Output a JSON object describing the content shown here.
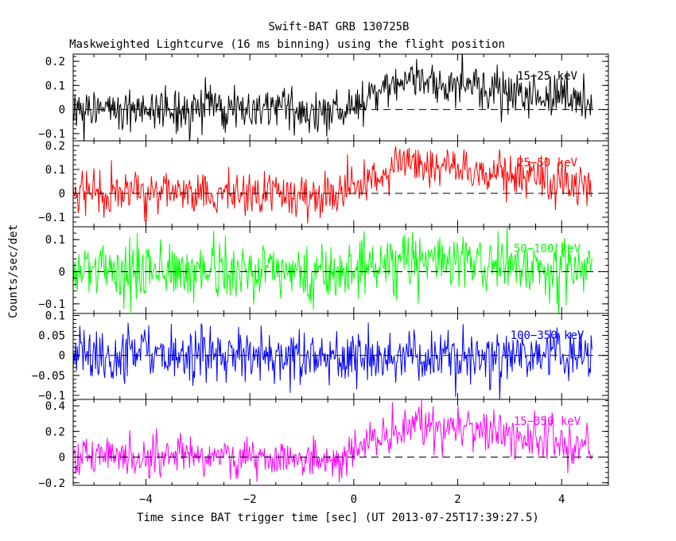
{
  "chart_data": {
    "type": "line",
    "title": "Swift-BAT GRB 130725B",
    "subtitle": "Maskweighted Lightcurve (16 ms binning) using the flight position",
    "xlabel": "Time since BAT trigger time [sec] (UT 2013-07-25T17:39:27.5)",
    "ylabel": "Counts/sec/det",
    "xlim": [
      -5.4,
      4.9
    ],
    "xticks": [
      -4,
      -2,
      0,
      2,
      4
    ],
    "xtick_labels": [
      "−4",
      "−2",
      "0",
      "2",
      "4"
    ],
    "bin_width_sec": 0.016,
    "time_range": [
      -5.4,
      4.6
    ],
    "panels": [
      {
        "name": "15−25 keV",
        "color": "#000000",
        "ylim": [
          -0.13,
          0.23
        ],
        "yticks": [
          -0.1,
          0,
          0.1,
          0.2
        ],
        "ytick_labels": [
          "−0.1",
          "0",
          "0.1",
          "0.2"
        ],
        "noise_sd": 0.045,
        "pulse_peak": 0.12,
        "pulse_start": -0.1,
        "pulse_peak_time": 1.0,
        "pulse_end": 4.6
      },
      {
        "name": "25−50 keV",
        "color": "#ff0000",
        "ylim": [
          -0.14,
          0.22
        ],
        "yticks": [
          -0.1,
          0,
          0.1,
          0.2
        ],
        "ytick_labels": [
          "−0.1",
          "0",
          "0.1",
          "0.2"
        ],
        "noise_sd": 0.045,
        "pulse_peak": 0.13,
        "pulse_start": -0.2,
        "pulse_peak_time": 1.0,
        "pulse_end": 4.6
      },
      {
        "name": "50−100 keV",
        "color": "#00ff00",
        "ylim": [
          -0.13,
          0.14
        ],
        "yticks": [
          -0.1,
          0,
          0.1
        ],
        "ytick_labels": [
          "−0.1",
          "0",
          "0.1"
        ],
        "noise_sd": 0.045,
        "pulse_peak": 0.03,
        "pulse_start": 0.0,
        "pulse_peak_time": 1.0,
        "pulse_end": 4.6
      },
      {
        "name": "100−350 keV",
        "color": "#0000ff",
        "ylim": [
          -0.11,
          0.105
        ],
        "yticks": [
          -0.1,
          -0.05,
          0,
          0.05,
          0.1
        ],
        "ytick_labels": [
          "−0.1",
          "−0.05",
          "0",
          "0.05",
          "0.1"
        ],
        "noise_sd": 0.035,
        "pulse_peak": 0.0,
        "pulse_start": 0.0,
        "pulse_peak_time": 1.0,
        "pulse_end": 4.6
      },
      {
        "name": "15−350 keV",
        "color": "#ff00ff",
        "ylim": [
          -0.22,
          0.45
        ],
        "yticks": [
          -0.2,
          0,
          0.2,
          0.4
        ],
        "ytick_labels": [
          "−0.2",
          "0",
          "0.2",
          "0.4"
        ],
        "noise_sd": 0.08,
        "pulse_peak": 0.28,
        "pulse_start": -0.15,
        "pulse_peak_time": 1.0,
        "pulse_end": 4.6
      }
    ],
    "zero_line_style": "dashed",
    "grid": false
  }
}
